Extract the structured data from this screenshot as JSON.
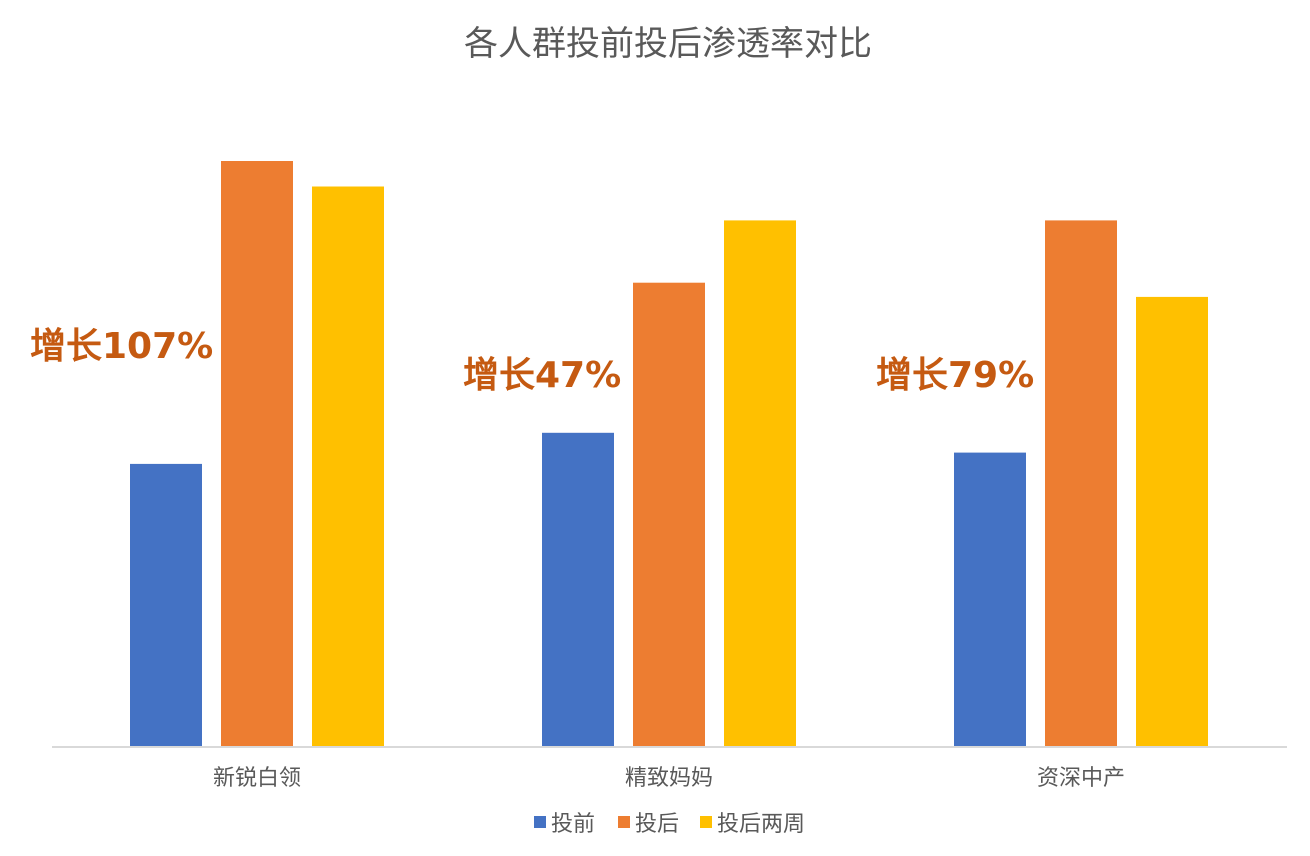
{
  "chart_data": {
    "type": "bar",
    "title": "各人群投前投后渗透率对比",
    "categories": [
      "新锐白领",
      "精致妈妈",
      "资深中产"
    ],
    "series": [
      {
        "name": "投前",
        "color": "#4472C4",
        "values": [
          1.0,
          1.11,
          1.04
        ]
      },
      {
        "name": "投后",
        "color": "#ED7D31",
        "values": [
          2.07,
          1.64,
          1.86
        ]
      },
      {
        "name": "投后两周",
        "color": "#FFC000",
        "values": [
          1.98,
          1.86,
          1.59
        ]
      }
    ],
    "annotations": [
      "增长107%",
      "增长47%",
      "增长79%"
    ],
    "annotation_color": "#C55A11",
    "ylim": [
      0,
      2.07
    ],
    "grid": false,
    "legend_position": "bottom"
  }
}
